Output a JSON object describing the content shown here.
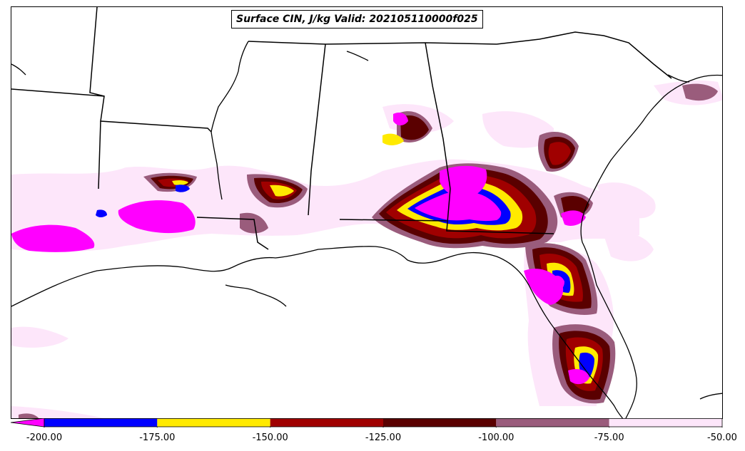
{
  "title": "Surface CIN, J/kg Valid: 202105110000f025",
  "colorbar": {
    "extend": "min",
    "min": -200,
    "max": -50,
    "ticks": [
      "-200.00",
      "-175.00",
      "-150.00",
      "-125.00",
      "-100.00",
      "-75.00",
      "-50.00"
    ],
    "bins": [
      {
        "from": -200,
        "to": -175,
        "color": "#0000ff"
      },
      {
        "from": -175,
        "to": -150,
        "color": "#ffea00"
      },
      {
        "from": -150,
        "to": -125,
        "color": "#a00000"
      },
      {
        "from": -125,
        "to": -100,
        "color": "#5a0000"
      },
      {
        "from": -100,
        "to": -75,
        "color": "#9a5c7c"
      },
      {
        "from": -75,
        "to": -50,
        "color": "#fde6fa"
      }
    ],
    "under_color": "#ff00ff"
  },
  "map": {
    "region": "Southeastern United States",
    "field": "Surface CIN",
    "units": "J/kg"
  }
}
